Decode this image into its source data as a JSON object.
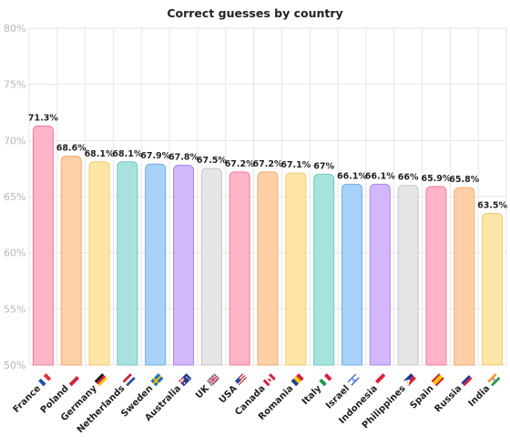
{
  "chart_data": {
    "type": "bar",
    "title": "Correct guesses by country",
    "xlabel": "",
    "ylabel": "",
    "ylim": [
      50,
      80
    ],
    "yticks": [
      50,
      55,
      60,
      65,
      70,
      75,
      80
    ],
    "ytick_labels": [
      "50%",
      "55%",
      "60%",
      "65%",
      "70%",
      "75%",
      "80%"
    ],
    "grid": true,
    "categories": [
      "France",
      "Poland",
      "Germany",
      "Netherlands",
      "Sweden",
      "Australia",
      "UK",
      "USA",
      "Canada",
      "Romania",
      "Italy",
      "Israel",
      "Indonesia",
      "Philippines",
      "Spain",
      "Russia",
      "India"
    ],
    "values": [
      71.3,
      68.6,
      68.1,
      68.1,
      67.9,
      67.8,
      67.5,
      67.2,
      67.2,
      67.1,
      67,
      66.1,
      66.1,
      66,
      65.9,
      65.8,
      63.5
    ],
    "value_labels": [
      "71.3%",
      "68.6%",
      "68.1%",
      "68.1%",
      "67.9%",
      "67.8%",
      "67.5%",
      "67.2%",
      "67.2%",
      "67.1%",
      "67%",
      "66.1%",
      "66.1%",
      "66%",
      "65.9%",
      "65.8%",
      "63.5%"
    ],
    "flag_icons": [
      "flag-france-icon",
      "flag-poland-icon",
      "flag-germany-icon",
      "flag-netherlands-icon",
      "flag-sweden-icon",
      "flag-australia-icon",
      "flag-uk-icon",
      "flag-usa-icon",
      "flag-canada-icon",
      "flag-romania-icon",
      "flag-italy-icon",
      "flag-israel-icon",
      "flag-indonesia-icon",
      "flag-philippines-icon",
      "flag-spain-icon",
      "flag-russia-icon",
      "flag-india-icon"
    ],
    "palette": [
      {
        "fill": "#ffb3c6",
        "stroke": "#f07c9a"
      },
      {
        "fill": "#ffd0a8",
        "stroke": "#f4a96e"
      },
      {
        "fill": "#ffe6a6",
        "stroke": "#f2c96a"
      },
      {
        "fill": "#a8e2de",
        "stroke": "#6ec8c2"
      },
      {
        "fill": "#a7d1f7",
        "stroke": "#6aaee8"
      },
      {
        "fill": "#d2b8fa",
        "stroke": "#a983ee"
      },
      {
        "fill": "#e6e6e6",
        "stroke": "#c4c4c4"
      }
    ]
  }
}
